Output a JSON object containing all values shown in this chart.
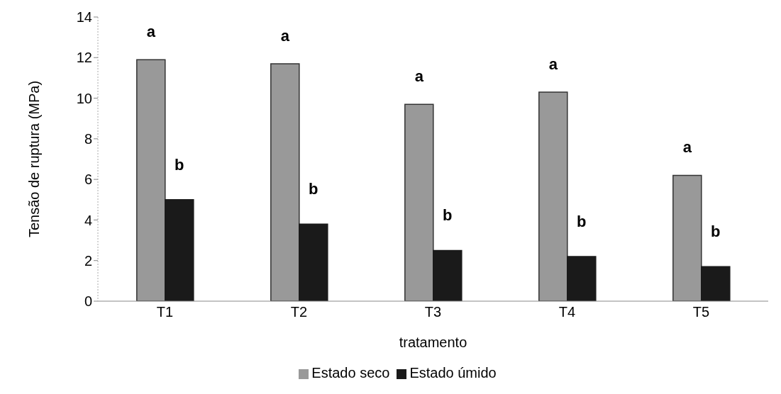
{
  "chart_data": {
    "type": "bar",
    "xlabel": "tratamento",
    "ylabel": "Tensão de ruptura (MPa)",
    "categories": [
      "T1",
      "T2",
      "T3",
      "T4",
      "T5"
    ],
    "series": [
      {
        "name": "Estado seco",
        "color": "#999999",
        "values": [
          11.9,
          11.7,
          9.7,
          10.3,
          6.2
        ],
        "value_labels": [
          "a",
          "a",
          "a",
          "a",
          "a"
        ]
      },
      {
        "name": "Estado úmido",
        "color": "#1a1a1a",
        "values": [
          5.0,
          3.8,
          2.5,
          2.2,
          1.7
        ],
        "value_labels": [
          "b",
          "b",
          "b",
          "b",
          "b"
        ]
      }
    ],
    "ylim": [
      0,
      14
    ],
    "yticks": [
      0,
      2,
      4,
      6,
      8,
      10,
      12,
      14
    ],
    "grid": false,
    "legend": "bottom"
  }
}
